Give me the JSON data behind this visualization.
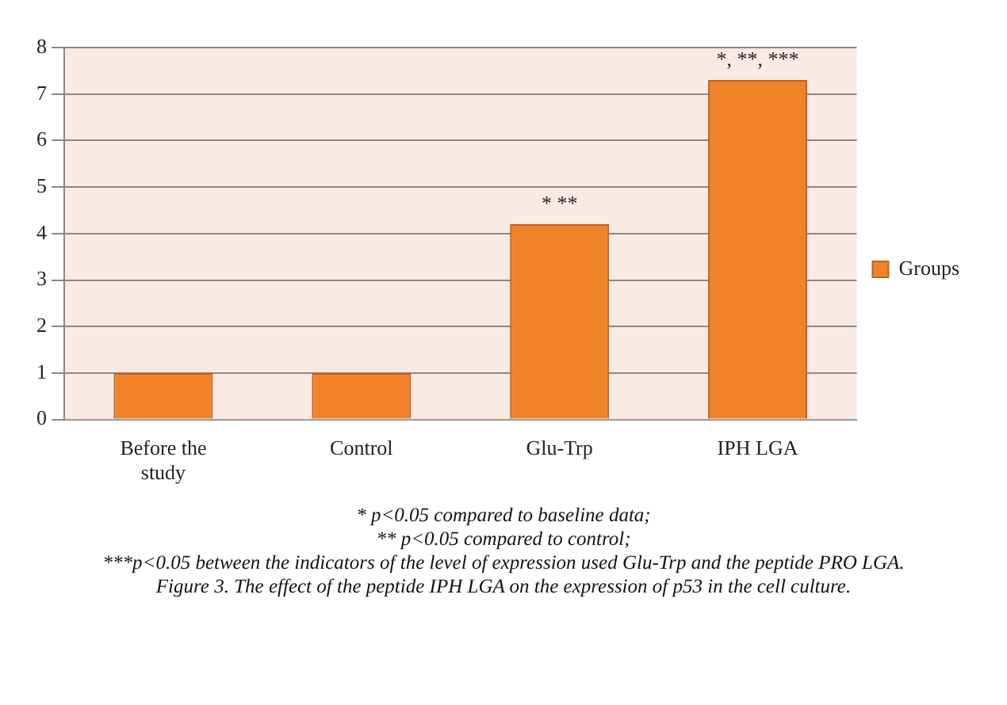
{
  "chart_data": {
    "type": "bar",
    "categories": [
      "Before the study",
      "Control",
      "Glu-Trp",
      "IPH LGA"
    ],
    "series": [
      {
        "name": "Groups",
        "color": "#f0832a",
        "values": [
          1,
          1,
          4.2,
          7.3
        ]
      }
    ],
    "ylim": [
      0,
      8
    ],
    "yticks": [
      0,
      1,
      2,
      3,
      4,
      5,
      6,
      7,
      8
    ],
    "grid": "y",
    "legend": "right",
    "annotations": [
      {
        "text": "* **",
        "x": "Glu-Trp",
        "y": 4.2
      },
      {
        "text": "*, **, ***",
        "x": "IPH LGA",
        "y": 7.3
      },
      "* p<0.05 compared to baseline data;",
      "** p<0.05 compared to control;",
      "***p<0.05 between the indicators of the level of expression used Glu-Trp and the peptide PRO LGA.",
      "Figure 3. The effect of the peptide IPH LGA on the expression of p53 in the cell culture."
    ]
  }
}
